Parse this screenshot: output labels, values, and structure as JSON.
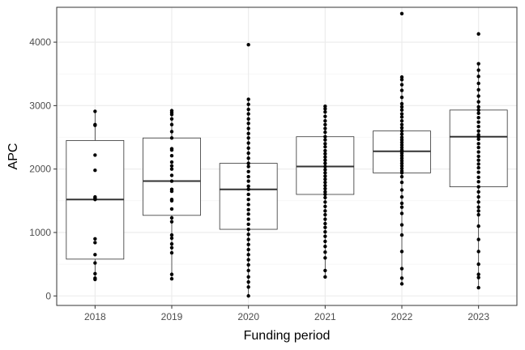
{
  "chart_data": {
    "type": "box",
    "xlabel": "Funding period",
    "ylabel": "APC",
    "ylim": [
      -150,
      4550
    ],
    "y_ticks": [
      0,
      1000,
      2000,
      3000,
      4000
    ],
    "grid": true,
    "theme": "bw",
    "categories": [
      "2018",
      "2019",
      "2020",
      "2021",
      "2022",
      "2023"
    ],
    "boxes": [
      {
        "category": "2018",
        "q1": 580,
        "median": 1520,
        "q3": 2450,
        "whisker_low": 260,
        "whisker_high": 2910
      },
      {
        "category": "2019",
        "q1": 1270,
        "median": 1810,
        "q3": 2490,
        "whisker_low": 270,
        "whisker_high": 2920
      },
      {
        "category": "2020",
        "q1": 1050,
        "median": 1680,
        "q3": 2090,
        "whisker_low": 0,
        "whisker_high": 3100
      },
      {
        "category": "2021",
        "q1": 1600,
        "median": 2040,
        "q3": 2510,
        "whisker_low": 300,
        "whisker_high": 2990
      },
      {
        "category": "2022",
        "q1": 1940,
        "median": 2280,
        "q3": 2600,
        "whisker_low": 190,
        "whisker_high": 3450
      },
      {
        "category": "2023",
        "q1": 1720,
        "median": 2510,
        "q3": 2930,
        "whisker_low": 130,
        "whisker_high": 3660
      }
    ],
    "points": [
      {
        "category": "2018",
        "values": [
          2910,
          2700,
          2690,
          2220,
          1980,
          1560,
          1540,
          1520,
          900,
          840,
          650,
          520,
          350,
          280,
          260
        ]
      },
      {
        "category": "2019",
        "values": [
          2920,
          2890,
          2860,
          2790,
          2700,
          2590,
          2490,
          2320,
          2300,
          2210,
          2110,
          2050,
          2000,
          1900,
          1810,
          1680,
          1650,
          1520,
          1500,
          1370,
          1230,
          1170,
          960,
          910,
          820,
          760,
          680,
          340,
          270
        ]
      },
      {
        "category": "2020",
        "values": [
          3960,
          3100,
          3020,
          2940,
          2870,
          2790,
          2720,
          2640,
          2560,
          2490,
          2410,
          2330,
          2250,
          2170,
          2090,
          2040,
          1960,
          1880,
          1810,
          1730,
          1680,
          1600,
          1520,
          1440,
          1360,
          1290,
          1210,
          1130,
          1050,
          970,
          890,
          810,
          730,
          650,
          570,
          490,
          400,
          300,
          220,
          140,
          0
        ]
      },
      {
        "category": "2021",
        "values": [
          2990,
          2950,
          2900,
          2830,
          2760,
          2700,
          2640,
          2580,
          2510,
          2460,
          2400,
          2350,
          2290,
          2240,
          2190,
          2140,
          2090,
          2040,
          1990,
          1940,
          1890,
          1840,
          1790,
          1740,
          1690,
          1640,
          1600,
          1550,
          1480,
          1410,
          1340,
          1280,
          1210,
          1140,
          1080,
          1010,
          940,
          860,
          780,
          690,
          600,
          400,
          300
        ]
      },
      {
        "category": "2022",
        "values": [
          4450,
          3450,
          3410,
          3330,
          3240,
          3130,
          3030,
          2980,
          2930,
          2870,
          2820,
          2760,
          2700,
          2650,
          2600,
          2550,
          2500,
          2460,
          2420,
          2380,
          2340,
          2300,
          2280,
          2250,
          2210,
          2170,
          2130,
          2090,
          2050,
          2010,
          1970,
          1940,
          1880,
          1790,
          1670,
          1560,
          1460,
          1400,
          1300,
          1120,
          960,
          700,
          430,
          280,
          190
        ]
      },
      {
        "category": "2023",
        "values": [
          4130,
          3660,
          3560,
          3460,
          3350,
          3250,
          3150,
          3060,
          2980,
          2930,
          2880,
          2810,
          2740,
          2670,
          2600,
          2540,
          2510,
          2470,
          2400,
          2340,
          2270,
          2200,
          2140,
          2080,
          2020,
          1950,
          1870,
          1800,
          1720,
          1640,
          1560,
          1480,
          1400,
          1340,
          1280,
          1100,
          890,
          700,
          500,
          340,
          290,
          130
        ]
      }
    ]
  }
}
